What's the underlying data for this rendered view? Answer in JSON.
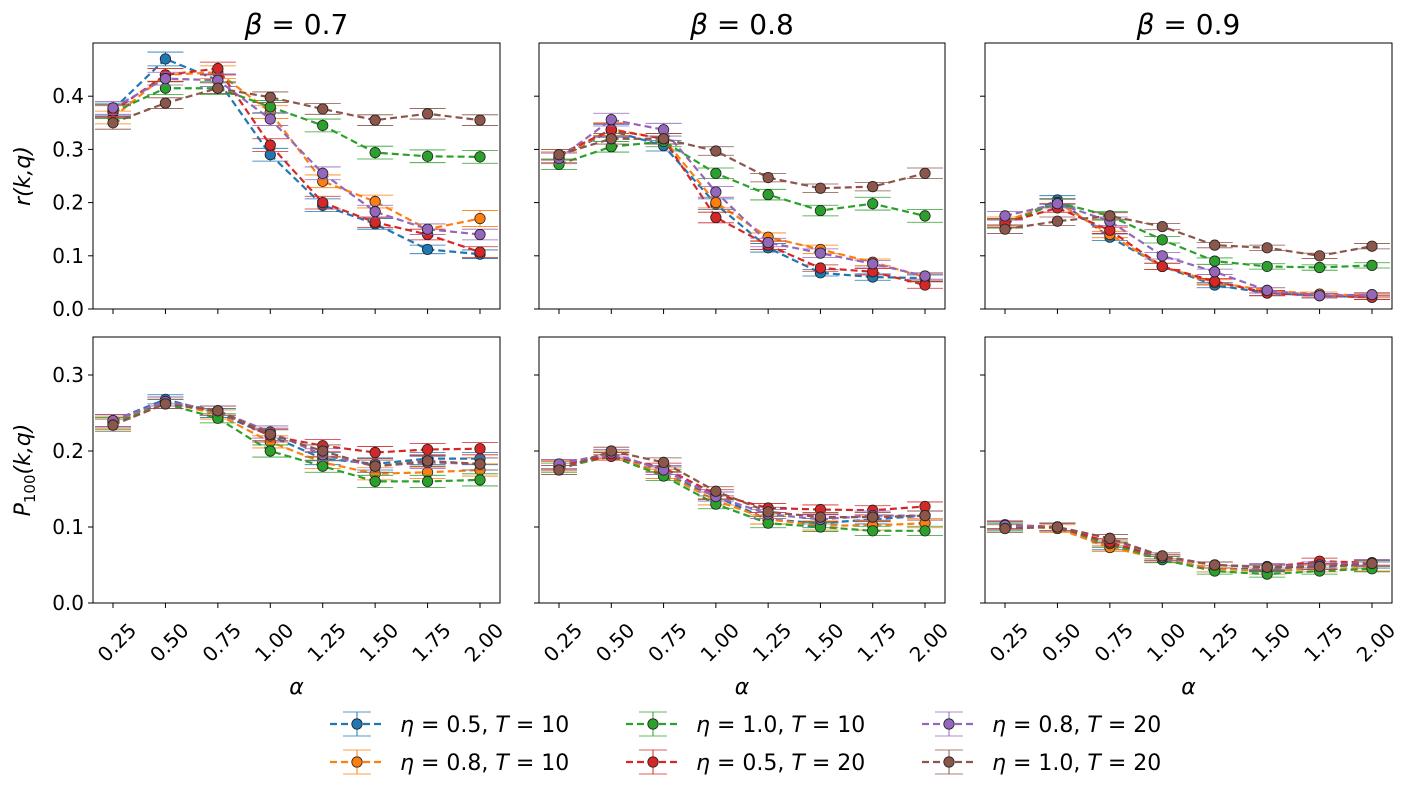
{
  "figure": {
    "legend": {
      "entries": [
        {
          "eta": "0.5",
          "T": "10",
          "color": "#1f77b4"
        },
        {
          "eta": "0.8",
          "T": "10",
          "color": "#ff7f0e"
        },
        {
          "eta": "1.0",
          "T": "10",
          "color": "#2ca02c"
        },
        {
          "eta": "0.5",
          "T": "20",
          "color": "#d62728"
        },
        {
          "eta": "0.8",
          "T": "20",
          "color": "#9467bd"
        },
        {
          "eta": "1.0",
          "T": "20",
          "color": "#8c564b"
        }
      ],
      "placement": "bottom-center"
    }
  },
  "chart_data": [
    {
      "type": "line",
      "title": "β = 0.7",
      "title_greek": "β",
      "title_value": "0.7",
      "xlabel": "α",
      "ylabel": "r(k,q)",
      "row": "r",
      "categories": [
        "0.25",
        "0.50",
        "0.75",
        "1.00",
        "1.25",
        "1.50",
        "1.75",
        "2.00"
      ],
      "ylim": [
        0,
        0.5
      ],
      "yticks": [
        "0.0",
        "0.1",
        "0.2",
        "0.3",
        "0.4"
      ],
      "series": [
        {
          "name": "η = 0.5, T = 10",
          "values": [
            0.375,
            0.47,
            0.43,
            0.29,
            0.195,
            0.16,
            0.112,
            0.103
          ],
          "err": [
            0.012,
            0.013,
            0.012,
            0.012,
            0.012,
            0.01,
            0.008,
            0.008
          ]
        },
        {
          "name": "η = 0.8, T = 10",
          "values": [
            0.36,
            0.44,
            0.445,
            0.37,
            0.24,
            0.202,
            0.15,
            0.17
          ],
          "err": [
            0.012,
            0.012,
            0.012,
            0.012,
            0.012,
            0.012,
            0.01,
            0.015
          ]
        },
        {
          "name": "η = 1.0, T = 10",
          "values": [
            0.37,
            0.415,
            0.415,
            0.38,
            0.345,
            0.294,
            0.287,
            0.286
          ],
          "err": [
            0.012,
            0.012,
            0.012,
            0.012,
            0.012,
            0.012,
            0.012,
            0.012
          ]
        },
        {
          "name": "η = 0.5, T = 20",
          "values": [
            0.372,
            0.44,
            0.452,
            0.308,
            0.2,
            0.163,
            0.14,
            0.107
          ],
          "err": [
            0.012,
            0.012,
            0.012,
            0.012,
            0.012,
            0.01,
            0.01,
            0.01
          ]
        },
        {
          "name": "η = 0.8, T = 20",
          "values": [
            0.378,
            0.433,
            0.43,
            0.357,
            0.255,
            0.183,
            0.15,
            0.14
          ],
          "err": [
            0.012,
            0.012,
            0.012,
            0.012,
            0.012,
            0.012,
            0.01,
            0.01
          ]
        },
        {
          "name": "η = 1.0, T = 20",
          "values": [
            0.35,
            0.387,
            0.415,
            0.398,
            0.376,
            0.355,
            0.367,
            0.355
          ],
          "err": [
            0.012,
            0.01,
            0.01,
            0.01,
            0.01,
            0.01,
            0.01,
            0.01
          ]
        }
      ]
    },
    {
      "type": "line",
      "title": "β = 0.8",
      "title_greek": "β",
      "title_value": "0.8",
      "xlabel": "α",
      "ylabel": "",
      "row": "r",
      "categories": [
        "0.25",
        "0.50",
        "0.75",
        "1.00",
        "1.25",
        "1.50",
        "1.75",
        "2.00"
      ],
      "ylim": [
        0,
        0.5
      ],
      "yticks": [],
      "series": [
        {
          "name": "η = 0.5, T = 10",
          "values": [
            0.285,
            0.335,
            0.307,
            0.197,
            0.115,
            0.068,
            0.06,
            0.058
          ],
          "err": [
            0.01,
            0.012,
            0.01,
            0.01,
            0.008,
            0.006,
            0.006,
            0.006
          ]
        },
        {
          "name": "η = 0.8, T = 10",
          "values": [
            0.285,
            0.338,
            0.32,
            0.2,
            0.135,
            0.112,
            0.088,
            0.06
          ],
          "err": [
            0.01,
            0.012,
            0.01,
            0.01,
            0.008,
            0.008,
            0.006,
            0.006
          ]
        },
        {
          "name": "η = 1.0, T = 10",
          "values": [
            0.272,
            0.305,
            0.315,
            0.255,
            0.215,
            0.185,
            0.198,
            0.175
          ],
          "err": [
            0.01,
            0.01,
            0.01,
            0.01,
            0.01,
            0.01,
            0.012,
            0.012
          ]
        },
        {
          "name": "η = 0.5, T = 20",
          "values": [
            0.29,
            0.337,
            0.32,
            0.172,
            0.12,
            0.077,
            0.07,
            0.045
          ],
          "err": [
            0.01,
            0.012,
            0.01,
            0.01,
            0.008,
            0.006,
            0.006,
            0.006
          ]
        },
        {
          "name": "η = 0.8, T = 20",
          "values": [
            0.283,
            0.356,
            0.337,
            0.22,
            0.125,
            0.105,
            0.085,
            0.062
          ],
          "err": [
            0.01,
            0.012,
            0.012,
            0.01,
            0.008,
            0.008,
            0.006,
            0.006
          ]
        },
        {
          "name": "η = 1.0, T = 20",
          "values": [
            0.29,
            0.32,
            0.32,
            0.297,
            0.247,
            0.227,
            0.23,
            0.255
          ],
          "err": [
            0.01,
            0.01,
            0.01,
            0.008,
            0.008,
            0.008,
            0.008,
            0.01
          ]
        }
      ]
    },
    {
      "type": "line",
      "title": "β = 0.9",
      "title_greek": "β",
      "title_value": "0.9",
      "xlabel": "α",
      "ylabel": "",
      "row": "r",
      "categories": [
        "0.25",
        "0.50",
        "0.75",
        "1.00",
        "1.25",
        "1.50",
        "1.75",
        "2.00"
      ],
      "ylim": [
        0,
        0.5
      ],
      "yticks": [],
      "series": [
        {
          "name": "η = 0.5, T = 10",
          "values": [
            0.16,
            0.205,
            0.135,
            0.08,
            0.045,
            0.03,
            0.025,
            0.022
          ],
          "err": [
            0.008,
            0.008,
            0.006,
            0.006,
            0.005,
            0.005,
            0.004,
            0.004
          ]
        },
        {
          "name": "η = 0.8, T = 10",
          "values": [
            0.165,
            0.2,
            0.14,
            0.08,
            0.05,
            0.035,
            0.028,
            0.025
          ],
          "err": [
            0.008,
            0.008,
            0.006,
            0.006,
            0.005,
            0.005,
            0.004,
            0.004
          ]
        },
        {
          "name": "η = 1.0, T = 10",
          "values": [
            0.16,
            0.2,
            0.175,
            0.13,
            0.09,
            0.08,
            0.078,
            0.082
          ],
          "err": [
            0.008,
            0.008,
            0.008,
            0.006,
            0.006,
            0.005,
            0.005,
            0.005
          ]
        },
        {
          "name": "η = 0.5, T = 20",
          "values": [
            0.162,
            0.19,
            0.148,
            0.08,
            0.052,
            0.03,
            0.025,
            0.022
          ],
          "err": [
            0.008,
            0.008,
            0.006,
            0.006,
            0.005,
            0.005,
            0.004,
            0.004
          ]
        },
        {
          "name": "η = 0.8, T = 20",
          "values": [
            0.175,
            0.198,
            0.165,
            0.1,
            0.07,
            0.035,
            0.025,
            0.027
          ],
          "err": [
            0.008,
            0.008,
            0.008,
            0.006,
            0.005,
            0.005,
            0.004,
            0.004
          ]
        },
        {
          "name": "η = 1.0, T = 20",
          "values": [
            0.15,
            0.165,
            0.175,
            0.155,
            0.12,
            0.115,
            0.1,
            0.118
          ],
          "err": [
            0.008,
            0.008,
            0.006,
            0.006,
            0.005,
            0.005,
            0.005,
            0.005
          ]
        }
      ]
    },
    {
      "type": "line",
      "title": "",
      "xlabel": "α",
      "ylabel": "P100(k,q)",
      "ylabel_main": "P",
      "ylabel_sub": "100",
      "ylabel_tail": "(k,q)",
      "row": "p",
      "categories": [
        "0.25",
        "0.50",
        "0.75",
        "1.00",
        "1.25",
        "1.50",
        "1.75",
        "2.00"
      ],
      "ylim": [
        0,
        0.35
      ],
      "yticks": [
        "0.0",
        "0.1",
        "0.2",
        "0.3"
      ],
      "series": [
        {
          "name": "η = 0.5, T = 10",
          "values": [
            0.24,
            0.268,
            0.25,
            0.22,
            0.19,
            0.183,
            0.19,
            0.19
          ],
          "err": [
            0.008,
            0.006,
            0.006,
            0.008,
            0.008,
            0.008,
            0.008,
            0.008
          ]
        },
        {
          "name": "η = 0.8, T = 10",
          "values": [
            0.238,
            0.265,
            0.248,
            0.212,
            0.185,
            0.17,
            0.172,
            0.175
          ],
          "err": [
            0.008,
            0.006,
            0.006,
            0.008,
            0.008,
            0.008,
            0.008,
            0.008
          ]
        },
        {
          "name": "η = 1.0, T = 10",
          "values": [
            0.236,
            0.262,
            0.243,
            0.2,
            0.18,
            0.16,
            0.16,
            0.162
          ],
          "err": [
            0.008,
            0.006,
            0.006,
            0.008,
            0.008,
            0.008,
            0.008,
            0.008
          ]
        },
        {
          "name": "η = 0.5, T = 20",
          "values": [
            0.24,
            0.265,
            0.253,
            0.22,
            0.207,
            0.198,
            0.202,
            0.203
          ],
          "err": [
            0.008,
            0.006,
            0.006,
            0.008,
            0.008,
            0.008,
            0.008,
            0.008
          ]
        },
        {
          "name": "η = 0.8, T = 20",
          "values": [
            0.24,
            0.265,
            0.253,
            0.225,
            0.195,
            0.18,
            0.185,
            0.183
          ],
          "err": [
            0.008,
            0.006,
            0.006,
            0.008,
            0.008,
            0.008,
            0.008,
            0.008
          ]
        },
        {
          "name": "η = 1.0, T = 20",
          "values": [
            0.234,
            0.262,
            0.253,
            0.222,
            0.2,
            0.18,
            0.187,
            0.183
          ],
          "err": [
            0.008,
            0.006,
            0.006,
            0.008,
            0.008,
            0.008,
            0.008,
            0.008
          ]
        }
      ]
    },
    {
      "type": "line",
      "title": "",
      "xlabel": "α",
      "ylabel": "",
      "row": "p",
      "categories": [
        "0.25",
        "0.50",
        "0.75",
        "1.00",
        "1.25",
        "1.50",
        "1.75",
        "2.00"
      ],
      "ylim": [
        0,
        0.35
      ],
      "yticks": [],
      "series": [
        {
          "name": "η = 0.5, T = 10",
          "values": [
            0.18,
            0.195,
            0.17,
            0.14,
            0.11,
            0.105,
            0.11,
            0.115
          ],
          "err": [
            0.006,
            0.005,
            0.006,
            0.006,
            0.006,
            0.006,
            0.006,
            0.006
          ]
        },
        {
          "name": "η = 0.8, T = 10",
          "values": [
            0.18,
            0.195,
            0.17,
            0.135,
            0.11,
            0.102,
            0.102,
            0.105
          ],
          "err": [
            0.006,
            0.005,
            0.006,
            0.006,
            0.006,
            0.006,
            0.006,
            0.006
          ]
        },
        {
          "name": "η = 1.0, T = 10",
          "values": [
            0.178,
            0.193,
            0.167,
            0.13,
            0.105,
            0.1,
            0.095,
            0.095
          ],
          "err": [
            0.006,
            0.005,
            0.006,
            0.006,
            0.006,
            0.006,
            0.006,
            0.006
          ]
        },
        {
          "name": "η = 0.5, T = 20",
          "values": [
            0.182,
            0.193,
            0.178,
            0.143,
            0.125,
            0.123,
            0.122,
            0.127
          ],
          "err": [
            0.006,
            0.005,
            0.006,
            0.006,
            0.006,
            0.006,
            0.006,
            0.006
          ]
        },
        {
          "name": "η = 0.8, T = 20",
          "values": [
            0.183,
            0.197,
            0.175,
            0.14,
            0.117,
            0.11,
            0.115,
            0.115
          ],
          "err": [
            0.006,
            0.005,
            0.006,
            0.006,
            0.006,
            0.006,
            0.006,
            0.006
          ]
        },
        {
          "name": "η = 1.0, T = 20",
          "values": [
            0.175,
            0.2,
            0.185,
            0.147,
            0.12,
            0.113,
            0.113,
            0.115
          ],
          "err": [
            0.006,
            0.005,
            0.006,
            0.006,
            0.006,
            0.006,
            0.006,
            0.006
          ]
        }
      ]
    },
    {
      "type": "line",
      "title": "",
      "xlabel": "α",
      "ylabel": "",
      "row": "p",
      "categories": [
        "0.25",
        "0.50",
        "0.75",
        "1.00",
        "1.25",
        "1.50",
        "1.75",
        "2.00"
      ],
      "ylim": [
        0,
        0.35
      ],
      "yticks": [],
      "series": [
        {
          "name": "η = 0.5, T = 10",
          "values": [
            0.102,
            0.1,
            0.075,
            0.058,
            0.045,
            0.045,
            0.048,
            0.05
          ],
          "err": [
            0.005,
            0.005,
            0.005,
            0.004,
            0.004,
            0.004,
            0.004,
            0.004
          ]
        },
        {
          "name": "η = 0.8, T = 10",
          "values": [
            0.102,
            0.098,
            0.073,
            0.058,
            0.045,
            0.042,
            0.045,
            0.046
          ],
          "err": [
            0.005,
            0.005,
            0.005,
            0.004,
            0.004,
            0.004,
            0.004,
            0.004
          ]
        },
        {
          "name": "η = 1.0, T = 10",
          "values": [
            0.1,
            0.1,
            0.078,
            0.057,
            0.042,
            0.038,
            0.042,
            0.045
          ],
          "err": [
            0.005,
            0.005,
            0.005,
            0.004,
            0.004,
            0.004,
            0.004,
            0.004
          ]
        },
        {
          "name": "η = 0.5, T = 20",
          "values": [
            0.103,
            0.1,
            0.08,
            0.06,
            0.05,
            0.047,
            0.055,
            0.053
          ],
          "err": [
            0.005,
            0.005,
            0.005,
            0.004,
            0.004,
            0.004,
            0.004,
            0.004
          ]
        },
        {
          "name": "η = 0.8, T = 20",
          "values": [
            0.102,
            0.1,
            0.085,
            0.06,
            0.05,
            0.048,
            0.05,
            0.053
          ],
          "err": [
            0.005,
            0.005,
            0.005,
            0.004,
            0.004,
            0.004,
            0.004,
            0.004
          ]
        },
        {
          "name": "η = 1.0, T = 20",
          "values": [
            0.098,
            0.1,
            0.085,
            0.062,
            0.05,
            0.047,
            0.048,
            0.052
          ],
          "err": [
            0.005,
            0.005,
            0.005,
            0.004,
            0.004,
            0.004,
            0.004,
            0.004
          ]
        }
      ]
    }
  ]
}
